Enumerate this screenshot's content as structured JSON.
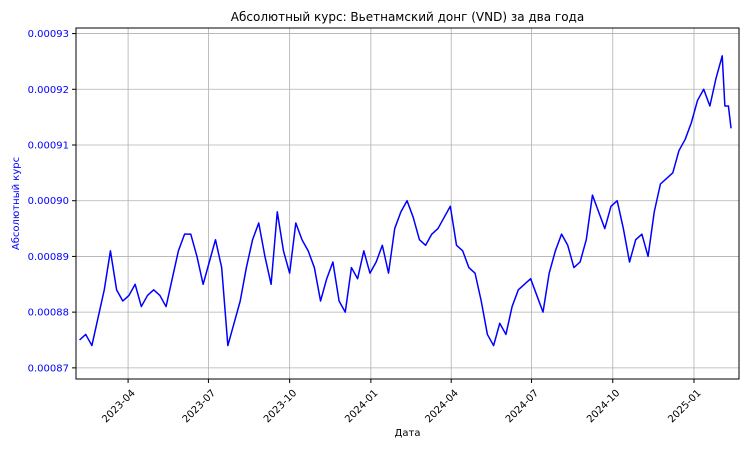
{
  "chart_data": {
    "type": "line",
    "title": "Абсолютный курс: Вьетнамский донг (VND) за два года",
    "xlabel": "Дата",
    "ylabel": "Абсолютный курс",
    "xlim": [
      "2023-02-01",
      "2025-02-21"
    ],
    "ylim": [
      0.000868,
      0.000931
    ],
    "x_ticks": [
      "2023-04",
      "2023-07",
      "2023-10",
      "2024-01",
      "2024-04",
      "2024-07",
      "2024-10",
      "2025-01"
    ],
    "y_ticks": [
      "0.00087",
      "0.00088",
      "0.00089",
      "0.00090",
      "0.00091",
      "0.00092",
      "0.00093"
    ],
    "grid": true,
    "colors": {
      "line": "#0000ff",
      "ylabel": "#0000ff",
      "yticks": "#0000ff",
      "grid": "#b0b0b0",
      "axes": "#000000"
    },
    "series": [
      {
        "x": [
          "2023-02-05",
          "2023-02-12",
          "2023-02-19",
          "2023-02-26",
          "2023-03-05",
          "2023-03-12",
          "2023-03-19",
          "2023-03-26",
          "2023-04-02",
          "2023-04-09",
          "2023-04-16",
          "2023-04-23",
          "2023-04-30",
          "2023-05-07",
          "2023-05-14",
          "2023-05-21",
          "2023-05-28",
          "2023-06-04",
          "2023-06-11",
          "2023-06-18",
          "2023-06-25",
          "2023-07-02",
          "2023-07-09",
          "2023-07-16",
          "2023-07-23",
          "2023-07-30",
          "2023-08-06",
          "2023-08-13",
          "2023-08-20",
          "2023-08-27",
          "2023-09-03",
          "2023-09-10",
          "2023-09-17",
          "2023-09-24",
          "2023-10-01",
          "2023-10-08",
          "2023-10-15",
          "2023-10-22",
          "2023-10-29",
          "2023-11-05",
          "2023-11-12",
          "2023-11-19",
          "2023-11-26",
          "2023-12-03",
          "2023-12-10",
          "2023-12-17",
          "2023-12-24",
          "2023-12-31",
          "2024-01-07",
          "2024-01-14",
          "2024-01-21",
          "2024-01-28",
          "2024-02-04",
          "2024-02-11",
          "2024-02-18",
          "2024-02-25",
          "2024-03-03",
          "2024-03-10",
          "2024-03-17",
          "2024-03-24",
          "2024-03-31",
          "2024-04-07",
          "2024-04-14",
          "2024-04-21",
          "2024-04-28",
          "2024-05-05",
          "2024-05-12",
          "2024-05-19",
          "2024-05-26",
          "2024-06-02",
          "2024-06-09",
          "2024-06-16",
          "2024-06-23",
          "2024-06-30",
          "2024-07-07",
          "2024-07-14",
          "2024-07-21",
          "2024-07-28",
          "2024-08-04",
          "2024-08-11",
          "2024-08-18",
          "2024-08-25",
          "2024-09-01",
          "2024-09-08",
          "2024-09-15",
          "2024-09-22",
          "2024-09-29",
          "2024-10-06",
          "2024-10-13",
          "2024-10-20",
          "2024-10-27",
          "2024-11-03",
          "2024-11-10",
          "2024-11-17",
          "2024-11-24",
          "2024-12-01",
          "2024-12-08",
          "2024-12-15",
          "2024-12-22",
          "2024-12-29",
          "2025-01-05",
          "2025-01-12",
          "2025-01-19",
          "2025-01-26",
          "2025-02-02",
          "2025-02-05",
          "2025-02-09",
          "2025-02-12"
        ],
        "values": [
          0.000875,
          0.000876,
          0.000874,
          0.000879,
          0.000884,
          0.000891,
          0.000884,
          0.000882,
          0.000883,
          0.000885,
          0.000881,
          0.000883,
          0.000884,
          0.000883,
          0.000881,
          0.000886,
          0.000891,
          0.000894,
          0.000894,
          0.00089,
          0.000885,
          0.000889,
          0.000893,
          0.000888,
          0.000874,
          0.000878,
          0.000882,
          0.000888,
          0.000893,
          0.000896,
          0.00089,
          0.000885,
          0.000898,
          0.000891,
          0.000887,
          0.000896,
          0.000893,
          0.000891,
          0.000888,
          0.000882,
          0.000886,
          0.000889,
          0.000882,
          0.00088,
          0.000888,
          0.000886,
          0.000891,
          0.000887,
          0.000889,
          0.000892,
          0.000887,
          0.000895,
          0.000898,
          0.0009,
          0.000897,
          0.000893,
          0.000892,
          0.000894,
          0.000895,
          0.000897,
          0.000899,
          0.000892,
          0.000891,
          0.000888,
          0.000887,
          0.000882,
          0.000876,
          0.000874,
          0.000878,
          0.000876,
          0.000881,
          0.000884,
          0.000885,
          0.000886,
          0.000883,
          0.00088,
          0.000887,
          0.000891,
          0.000894,
          0.000892,
          0.000888,
          0.000889,
          0.000893,
          0.000901,
          0.000898,
          0.000895,
          0.000899,
          0.0009,
          0.000895,
          0.000889,
          0.000893,
          0.000894,
          0.00089,
          0.000898,
          0.000903,
          0.000904,
          0.000905,
          0.000909,
          0.000911,
          0.000914,
          0.000918,
          0.00092,
          0.000917,
          0.000922,
          0.000926,
          0.000917,
          0.000917,
          0.000913
        ]
      }
    ]
  }
}
